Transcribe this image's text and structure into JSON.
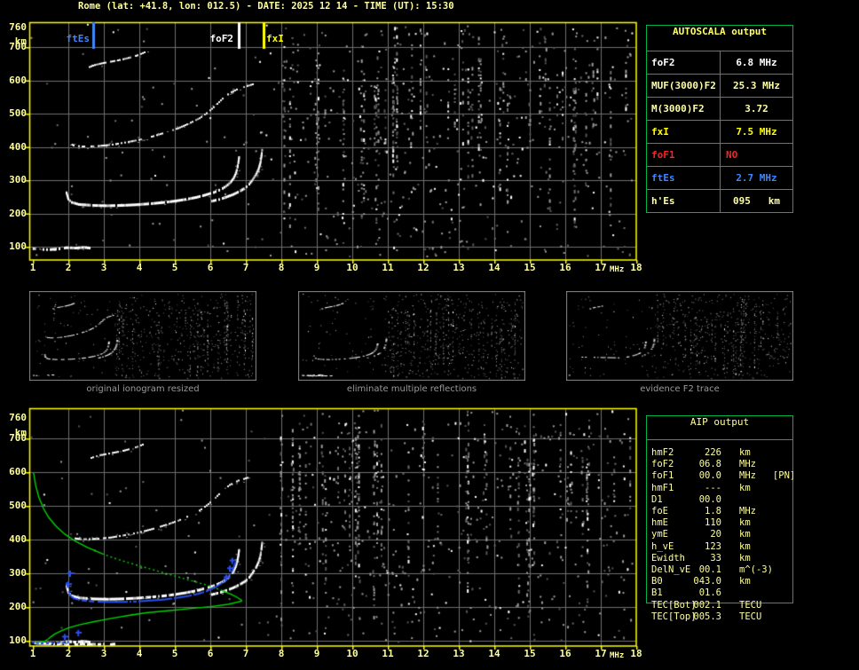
{
  "title": "Rome (lat: +41.8, lon: 012.5) - DATE: 2025 12 14 - TIME (UT): 15:30",
  "colors": {
    "background": "#000000",
    "axis_text": "#ffff9c",
    "plot_border": "#ffff00",
    "grid": "#6f6f6f",
    "table_border": "#00b44c",
    "profile_green": "#00d400",
    "fit_blue": "#2850f0",
    "alert_red": "#ff2020",
    "es_blue": "#3f86ff",
    "noise_gray": "#9c9c9c",
    "thumb_border": "#8a8a8a",
    "caption_gray": "#9a9a9a"
  },
  "axes": {
    "x_ticks": [
      "1",
      "2",
      "3",
      "4",
      "5",
      "6",
      "7",
      "8",
      "9",
      "10",
      "11",
      "12",
      "13",
      "14",
      "15",
      "16",
      "17",
      "18"
    ],
    "x_unit": "MHz",
    "y_ticks": [
      "760",
      "700",
      "600",
      "500",
      "400",
      "300",
      "200",
      "100"
    ],
    "y_unit": "km"
  },
  "markers": [
    {
      "label": "ftEs",
      "freq": 2.7,
      "color": "#3f86ff"
    },
    {
      "label": "foF2",
      "freq": 6.8,
      "color": "#ffffff"
    },
    {
      "label": "fxI",
      "freq": 7.5,
      "color": "#ffff00"
    }
  ],
  "autoscala_table": {
    "title": "AUTOSCALA output",
    "rows": [
      {
        "label": "foF2",
        "value": "6.8 MHz",
        "color": "#ffffff"
      },
      {
        "label": "MUF(3000)F2",
        "value": "25.3 MHz",
        "color": "#ffffa6"
      },
      {
        "label": "M(3000)F2",
        "value": "3.72",
        "color": "#ffffa6"
      },
      {
        "label": "fxI",
        "value": "7.5 MHz",
        "color": "#ffff00"
      },
      {
        "label": "foF1",
        "value": "NO",
        "color": "#ff2020"
      },
      {
        "label": "ftEs",
        "value": "2.7 MHz",
        "color": "#3f86ff"
      },
      {
        "label": "h'Es",
        "value": "095   km",
        "color": "#ffffa6"
      }
    ]
  },
  "thumbnails": [
    {
      "caption": "original ionogram resized"
    },
    {
      "caption": "eliminate multiple reflections"
    },
    {
      "caption": "evidence F2 trace"
    }
  ],
  "aip_table": {
    "title": "AIP output",
    "rows": [
      {
        "label": "hmF2",
        "value": "226",
        "unit": "km"
      },
      {
        "label": "foF2",
        "value": "06.8",
        "unit": "MHz"
      },
      {
        "label": "foF1",
        "value": "00.0",
        "unit": "MHz   [PN]"
      },
      {
        "label": "hmF1",
        "value": "---",
        "unit": "km"
      },
      {
        "label": "D1",
        "value": "00.0",
        "unit": ""
      },
      {
        "label": "foE",
        "value": "1.8",
        "unit": "MHz"
      },
      {
        "label": "hmE",
        "value": "110",
        "unit": "km"
      },
      {
        "label": "ymE",
        "value": "20",
        "unit": "km"
      },
      {
        "label": "h_vE",
        "value": "123",
        "unit": "km"
      },
      {
        "label": "Ewidth",
        "value": "33",
        "unit": "km"
      },
      {
        "label": "DelN_vE",
        "value": "00.1",
        "unit": "m^(-3)"
      },
      {
        "label": "B0",
        "value": "043.0",
        "unit": "km"
      },
      {
        "label": "B1",
        "value": "01.6",
        "unit": ""
      },
      {
        "label": "TEC[Bot]",
        "value": "002.1",
        "unit": "TECU"
      },
      {
        "label": "TEC[Top]",
        "value": "005.3",
        "unit": "TECU"
      }
    ]
  },
  "chart_data": {
    "type": "scatter",
    "description": "ionogram: virtual height (km) vs sounding frequency (MHz)",
    "x_range": [
      1,
      18
    ],
    "x_unit": "MHz",
    "y_range": [
      60,
      760
    ],
    "y_unit": "km",
    "grid": true,
    "scaled_values": {
      "foF2_MHz": 6.8,
      "fxI_MHz": 7.5,
      "ftEs_MHz": 2.7,
      "hEs_km": 95,
      "hmF2_km": 226
    },
    "traces": {
      "f2_main_o": {
        "width": 3,
        "skip": 0.12,
        "points": [
          [
            1.95,
            262
          ],
          [
            2.0,
            243
          ],
          [
            2.1,
            233
          ],
          [
            2.3,
            227
          ],
          [
            2.7,
            224
          ],
          [
            3.1,
            223
          ],
          [
            3.5,
            224
          ],
          [
            3.9,
            226
          ],
          [
            4.3,
            229
          ],
          [
            4.7,
            233
          ],
          [
            5.0,
            237
          ],
          [
            5.3,
            242
          ],
          [
            5.6,
            248
          ],
          [
            5.85,
            255
          ],
          [
            6.1,
            263
          ],
          [
            6.3,
            272
          ],
          [
            6.45,
            282
          ],
          [
            6.57,
            293
          ],
          [
            6.66,
            306
          ],
          [
            6.72,
            320
          ],
          [
            6.76,
            335
          ],
          [
            6.79,
            352
          ],
          [
            6.81,
            368
          ]
        ]
      },
      "f2_main_x": {
        "width": 3,
        "skip": 0.12,
        "points": [
          [
            6.05,
            237
          ],
          [
            6.25,
            242
          ],
          [
            6.45,
            249
          ],
          [
            6.65,
            257
          ],
          [
            6.82,
            266
          ],
          [
            6.98,
            276
          ],
          [
            7.1,
            288
          ],
          [
            7.2,
            302
          ],
          [
            7.29,
            317
          ],
          [
            7.36,
            333
          ],
          [
            7.41,
            351
          ],
          [
            7.44,
            371
          ],
          [
            7.46,
            390
          ]
        ]
      },
      "f2_hop": {
        "width": 2,
        "skip": 0.35,
        "points": [
          [
            2.05,
            412
          ],
          [
            2.15,
            404
          ],
          [
            2.4,
            401
          ],
          [
            2.8,
            402
          ],
          [
            3.2,
            406
          ],
          [
            3.6,
            413
          ],
          [
            4.0,
            421
          ],
          [
            4.4,
            432
          ],
          [
            4.8,
            445
          ],
          [
            5.1,
            456
          ],
          [
            5.4,
            470
          ],
          [
            5.7,
            486
          ],
          [
            5.95,
            505
          ],
          [
            6.15,
            524
          ],
          [
            6.35,
            545
          ],
          [
            6.55,
            562
          ],
          [
            6.8,
            575
          ],
          [
            7.05,
            583
          ],
          [
            7.2,
            588
          ]
        ]
      },
      "f3_hop": {
        "width": 2,
        "skip": 0.3,
        "points": [
          [
            2.6,
            640
          ],
          [
            2.75,
            646
          ],
          [
            2.95,
            651
          ],
          [
            3.2,
            656
          ],
          [
            3.5,
            662
          ],
          [
            3.8,
            670
          ],
          [
            4.0,
            677
          ],
          [
            4.15,
            684
          ]
        ]
      },
      "es": {
        "width": 3,
        "skip": 0.25,
        "points": [
          [
            1.02,
            94
          ],
          [
            1.2,
            92
          ],
          [
            1.45,
            91
          ],
          [
            1.7,
            93
          ],
          [
            1.95,
            97
          ],
          [
            2.2,
            96
          ],
          [
            2.45,
            98
          ],
          [
            2.6,
            96
          ]
        ]
      },
      "es2": {
        "width": 3,
        "skip": 0.2,
        "points": [
          [
            1.5,
            93
          ],
          [
            1.65,
            89
          ],
          [
            1.8,
            91
          ],
          [
            1.95,
            87
          ],
          [
            2.1,
            90
          ],
          [
            2.25,
            88
          ],
          [
            2.4,
            91
          ],
          [
            2.55,
            88
          ],
          [
            2.7,
            90
          ],
          [
            2.85,
            89
          ],
          [
            3.0,
            90
          ],
          [
            3.15,
            88
          ],
          [
            3.3,
            90
          ]
        ]
      }
    },
    "profile": {
      "topside": [
        [
          1.02,
          598
        ],
        [
          1.08,
          560
        ],
        [
          1.17,
          525
        ],
        [
          1.3,
          492
        ],
        [
          1.45,
          465
        ],
        [
          1.65,
          440
        ],
        [
          1.9,
          416
        ],
        [
          2.2,
          395
        ],
        [
          2.55,
          376
        ],
        [
          2.95,
          358
        ],
        [
          3.4,
          341
        ],
        [
          3.9,
          325
        ],
        [
          4.4,
          310
        ],
        [
          4.9,
          295
        ],
        [
          5.4,
          280
        ],
        [
          5.9,
          265
        ],
        [
          6.3,
          250
        ],
        [
          6.6,
          237
        ],
        [
          6.78,
          227
        ],
        [
          6.88,
          220
        ]
      ],
      "bottomside": [
        [
          6.88,
          217
        ],
        [
          6.5,
          208
        ],
        [
          6.0,
          201
        ],
        [
          5.4,
          195
        ],
        [
          4.8,
          189
        ],
        [
          4.2,
          183
        ],
        [
          3.7,
          175
        ],
        [
          3.2,
          166
        ],
        [
          2.7,
          156
        ],
        [
          2.3,
          147
        ],
        [
          2.0,
          138
        ],
        [
          1.8,
          129
        ],
        [
          1.62,
          120
        ],
        [
          1.5,
          111
        ],
        [
          1.42,
          104
        ],
        [
          1.34,
          99
        ],
        [
          1.2,
          96
        ],
        [
          1.05,
          95
        ]
      ],
      "dash_range": [
        3.2,
        6.3
      ]
    },
    "fit_blue": [
      [
        1.95,
        270
      ],
      [
        2.0,
        250
      ],
      [
        2.05,
        235
      ],
      [
        2.15,
        226
      ],
      [
        2.35,
        220
      ],
      [
        2.7,
        216
      ],
      [
        3.1,
        215
      ],
      [
        3.5,
        215
      ],
      [
        3.9,
        216
      ],
      [
        4.3,
        219
      ],
      [
        4.7,
        222
      ],
      [
        5.05,
        227
      ],
      [
        5.4,
        233
      ],
      [
        5.7,
        240
      ],
      [
        5.95,
        249
      ],
      [
        6.15,
        259
      ],
      [
        6.32,
        271
      ],
      [
        6.47,
        285
      ],
      [
        6.58,
        300
      ],
      [
        6.65,
        315
      ],
      [
        6.7,
        330
      ]
    ],
    "plus_markers": [
      [
        2.0,
        268
      ],
      [
        2.05,
        300
      ],
      [
        6.45,
        288
      ],
      [
        6.55,
        315
      ],
      [
        6.62,
        338
      ],
      [
        2.28,
        124
      ],
      [
        1.9,
        112
      ]
    ],
    "es_blue": [
      [
        1.0,
        95
      ],
      [
        1.12,
        93
      ],
      [
        1.25,
        92
      ],
      [
        1.4,
        92
      ],
      [
        1.55,
        93
      ],
      [
        1.7,
        94
      ],
      [
        1.85,
        95
      ],
      [
        1.98,
        96
      ]
    ]
  }
}
